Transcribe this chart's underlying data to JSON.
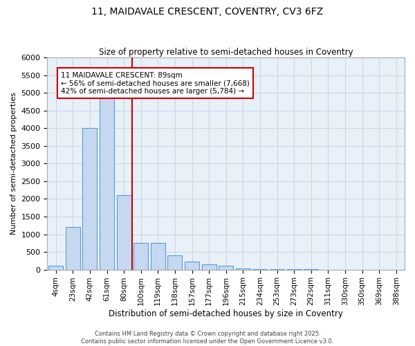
{
  "title1": "11, MAIDAVALE CRESCENT, COVENTRY, CV3 6FZ",
  "title2": "Size of property relative to semi-detached houses in Coventry",
  "xlabel": "Distribution of semi-detached houses by size in Coventry",
  "ylabel": "Number of semi-detached properties",
  "categories": [
    "4sqm",
    "23sqm",
    "42sqm",
    "61sqm",
    "80sqm",
    "100sqm",
    "119sqm",
    "138sqm",
    "157sqm",
    "177sqm",
    "196sqm",
    "215sqm",
    "234sqm",
    "253sqm",
    "273sqm",
    "292sqm",
    "311sqm",
    "330sqm",
    "350sqm",
    "369sqm",
    "388sqm"
  ],
  "values": [
    100,
    1200,
    4000,
    4850,
    2100,
    750,
    750,
    400,
    220,
    150,
    100,
    30,
    10,
    5,
    3,
    2,
    1,
    1,
    1,
    1,
    1
  ],
  "bar_color": "#c5d8f0",
  "bar_edge_color": "#5b9bd5",
  "property_label": "11 MAIDAVALE CRESCENT: 89sqm",
  "smaller_pct": "56%",
  "smaller_count": "7,668",
  "larger_pct": "42%",
  "larger_count": "5,784",
  "vline_color": "#cc0000",
  "annotation_box_color": "#cc0000",
  "ylim": [
    0,
    6000
  ],
  "yticks": [
    0,
    500,
    1000,
    1500,
    2000,
    2500,
    3000,
    3500,
    4000,
    4500,
    5000,
    5500,
    6000
  ],
  "grid_color": "#c8d8e8",
  "background_color": "#e8f0f8",
  "footer1": "Contains HM Land Registry data © Crown copyright and database right 2025.",
  "footer2": "Contains public sector information licensed under the Open Government Licence v3.0."
}
